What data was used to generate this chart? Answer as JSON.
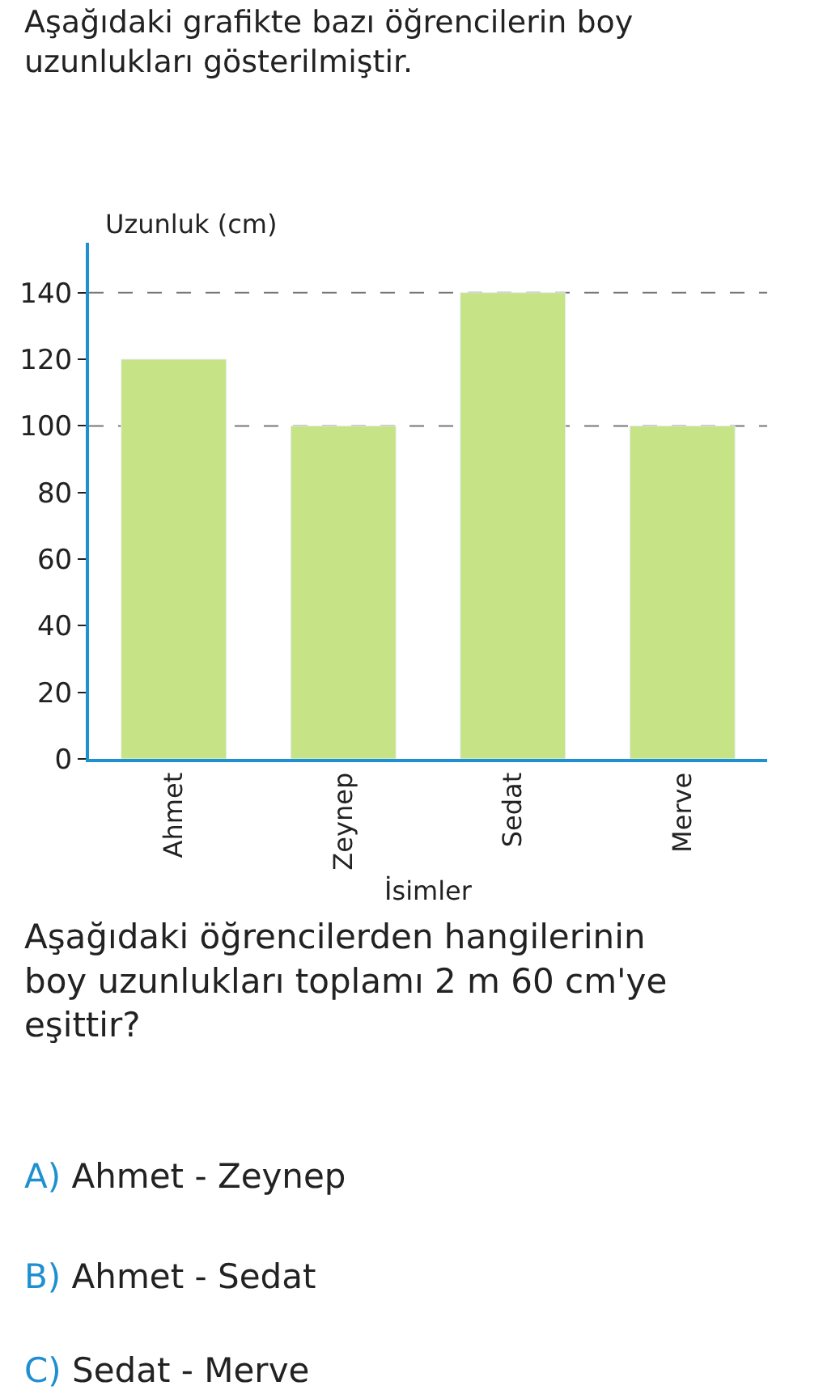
{
  "chart_data": {
    "type": "bar",
    "title": "Aşağıdaki grafikte bazı öğrencilerin boy uzunlukları gösterilmiştir.",
    "xlabel": "İsimler",
    "ylabel": "Uzunluk (cm)",
    "categories": [
      "Ahmet",
      "Zeynep",
      "Sedat",
      "Merve"
    ],
    "series": [
      {
        "color": "#c6e386",
        "values": [
          120,
          100,
          140,
          100
        ]
      }
    ],
    "ylim": [
      0,
      155
    ],
    "yticks": [
      0,
      20,
      40,
      60,
      80,
      100,
      120,
      140
    ],
    "ref_lines": [
      {
        "axis": "y",
        "value": 140,
        "color": "#777777",
        "line_style": "dashed"
      },
      {
        "axis": "y",
        "value": 100,
        "color": "#777777",
        "line_style": "dashed"
      }
    ],
    "grid": false,
    "annotations": [
      "Aşağıdaki öğrencilerden hangilerinin boy uzunlukları toplamı 2 m 60 cm'ye eşittir?",
      "A) Ahmet - Zeynep",
      "B) Ahmet - Sedat",
      "C) Sedat - Merve"
    ]
  }
}
